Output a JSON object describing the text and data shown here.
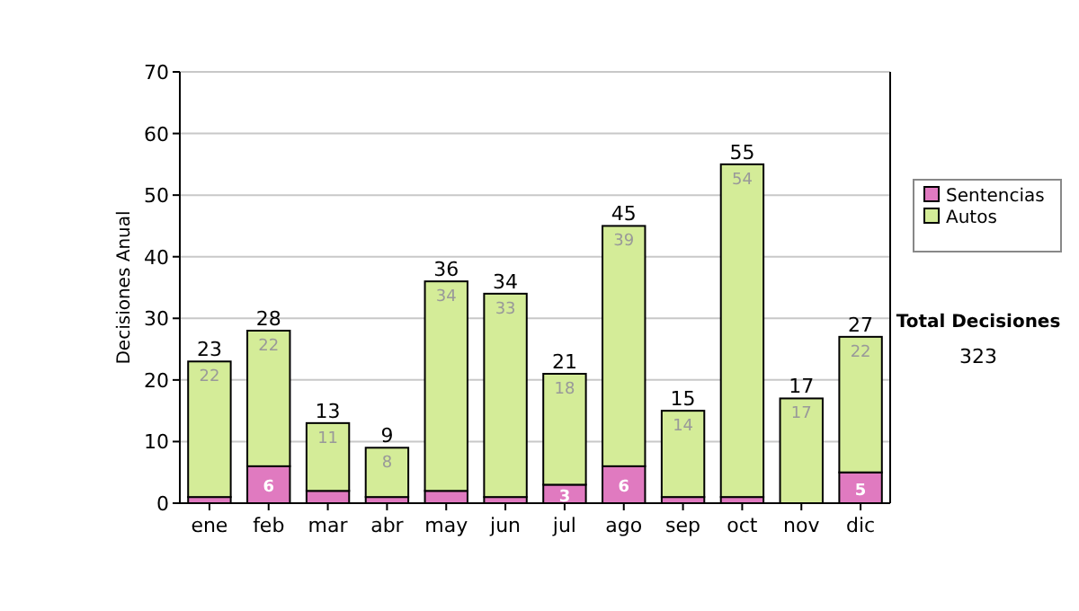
{
  "chart_data": {
    "type": "bar",
    "stacked": true,
    "ylabel": "Decisiones Anual",
    "categories": [
      "ene",
      "feb",
      "mar",
      "abr",
      "may",
      "jun",
      "jul",
      "ago",
      "sep",
      "oct",
      "nov",
      "dic"
    ],
    "series": [
      {
        "name": "Sentencias",
        "color": "#e07ac0",
        "values": [
          1,
          6,
          2,
          1,
          2,
          1,
          3,
          6,
          1,
          1,
          0,
          5
        ],
        "value_labels": [
          null,
          "6",
          null,
          null,
          null,
          null,
          "3",
          "6",
          null,
          null,
          null,
          "5"
        ]
      },
      {
        "name": "Autos",
        "color": "#d4ec98",
        "values": [
          22,
          22,
          11,
          8,
          34,
          33,
          18,
          39,
          14,
          54,
          17,
          22
        ],
        "value_labels": [
          "22",
          "22",
          "11",
          "8",
          "34",
          "33",
          "18",
          "39",
          "14",
          "54",
          "17",
          "22"
        ]
      }
    ],
    "totals": [
      "23",
      "28",
      "13",
      "9",
      "36",
      "34",
      "21",
      "45",
      "15",
      "55",
      "17",
      "27"
    ],
    "ylim": [
      0,
      70
    ],
    "yticks": [
      0,
      10,
      20,
      30,
      40,
      50,
      60,
      70
    ],
    "grid": "y",
    "legend": "right",
    "annotations": [
      "Total Decisiones",
      "323"
    ]
  }
}
